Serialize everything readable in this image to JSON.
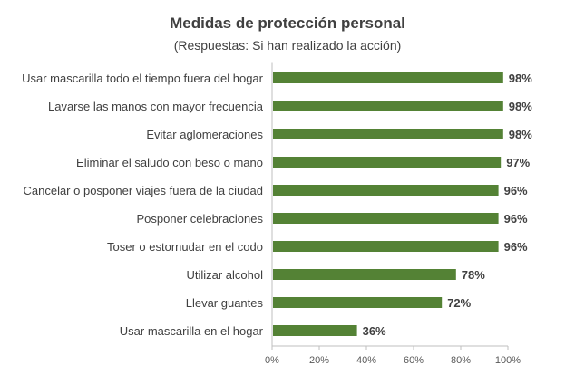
{
  "chart_data": {
    "type": "bar",
    "orientation": "horizontal",
    "title": "Medidas de protección personal",
    "subtitle": "(Respuestas: Si han realizado la acción)",
    "xlabel": "",
    "ylabel": "",
    "categories": [
      "Usar mascarilla todo el tiempo fuera del hogar",
      "Lavarse las manos con mayor frecuencia",
      "Evitar aglomeraciones",
      "Eliminar el saludo con beso o mano",
      "Cancelar o posponer viajes fuera de la ciudad",
      "Posponer celebraciones",
      "Toser o estornudar en el codo",
      "Utilizar alcohol",
      "Llevar guantes",
      "Usar mascarilla en el hogar"
    ],
    "values": [
      98,
      98,
      98,
      97,
      96,
      96,
      96,
      78,
      72,
      36
    ],
    "data_labels": [
      "98%",
      "98%",
      "98%",
      "97%",
      "96%",
      "96%",
      "96%",
      "78%",
      "72%",
      "36%"
    ],
    "xlim": [
      0,
      100
    ],
    "x_ticks": [
      "0%",
      "20%",
      "40%",
      "60%",
      "80%",
      "100%"
    ],
    "x_tick_values": [
      0,
      20,
      40,
      60,
      80,
      100
    ],
    "grid": false,
    "legend": "none",
    "bar_color": "#548235",
    "axis_color": "#BFBFBF",
    "text_color": "#404040"
  }
}
